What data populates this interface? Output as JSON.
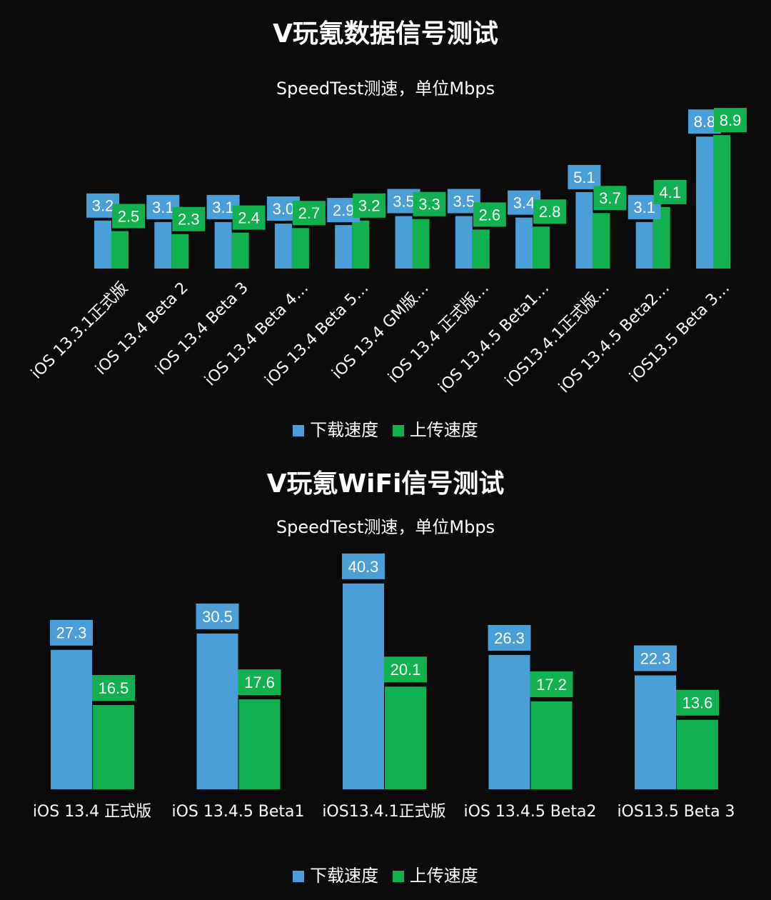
{
  "chart_data": [
    {
      "type": "bar",
      "title": "V玩氪数据信号测试",
      "subtitle": "SpeedTest测速，单位Mbps",
      "categories": [
        "iOS 13.3.1正式版",
        "iOS 13.4 Beta 2",
        "iOS 13.4 Beta 3",
        "iOS 13.4 Beta 4…",
        "iOS 13.4 Beta 5…",
        "iOS 13.4 GM版…",
        "iOS 13.4 正式版…",
        "iOS 13.4.5 Beta1…",
        "iOS13.4.1正式版…",
        "iOS 13.4.5 Beta2…",
        "iOS13.5 Beta 3…"
      ],
      "series": [
        {
          "name": "下载速度",
          "color": "#4a9fd8",
          "values": [
            3.2,
            3.1,
            3.1,
            3.0,
            2.9,
            3.5,
            3.5,
            3.4,
            5.1,
            3.1,
            8.8
          ]
        },
        {
          "name": "上传速度",
          "color": "#12b14f",
          "values": [
            2.5,
            2.3,
            2.4,
            2.7,
            3.2,
            3.3,
            2.6,
            2.8,
            3.7,
            4.1,
            8.9
          ]
        }
      ],
      "labels_shown": [
        [
          "3.2",
          "3.1",
          "3.1",
          "3.0",
          "2.9",
          "3.5",
          "3.5",
          "3.4",
          "5.1",
          "3.1",
          "8.8"
        ],
        [
          "2.5",
          "2.3",
          "2.4",
          "2.7",
          "3.2",
          "3.3",
          "2.6",
          "2.8",
          "3.7",
          "4.1",
          "8.9"
        ]
      ],
      "ylim": [
        0,
        10
      ],
      "grid": false,
      "legend": "bottom"
    },
    {
      "type": "bar",
      "title": "V玩氪WiFi信号测试",
      "subtitle": "SpeedTest测速，单位Mbps",
      "categories": [
        "iOS 13.4 正式版",
        "iOS 13.4.5 Beta1",
        "iOS13.4.1正式版",
        "iOS 13.4.5 Beta2",
        "iOS13.5 Beta 3"
      ],
      "series": [
        {
          "name": "下载速度",
          "color": "#4a9fd8",
          "values": [
            27.3,
            30.5,
            40.3,
            26.3,
            22.3
          ]
        },
        {
          "name": "上传速度",
          "color": "#12b14f",
          "values": [
            16.5,
            17.6,
            20.1,
            17.2,
            13.6
          ]
        }
      ],
      "ylim": [
        0,
        45
      ],
      "grid": false,
      "legend": "bottom"
    }
  ]
}
